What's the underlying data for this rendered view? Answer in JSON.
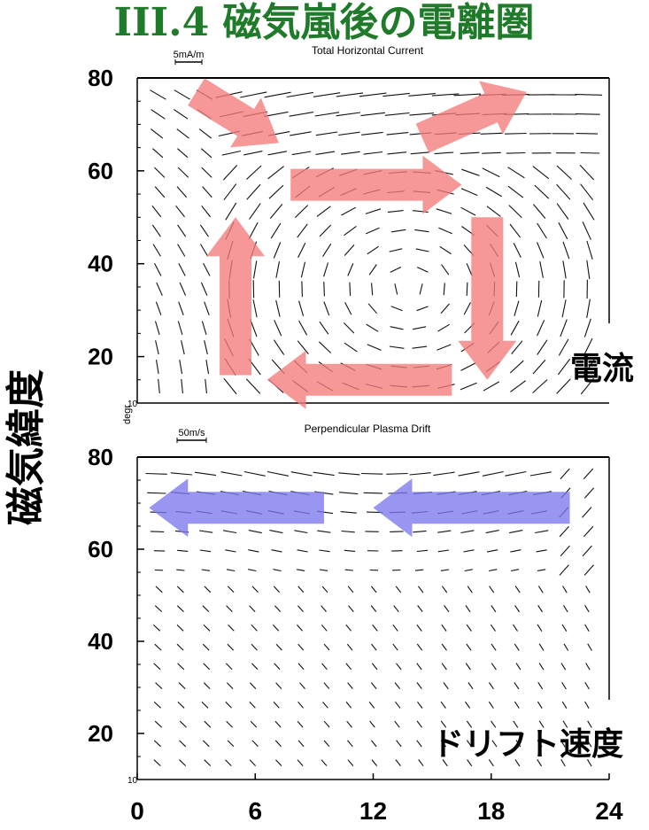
{
  "slide_title": "III.4 磁気嵐後の電離圏",
  "y_axis_label": "磁気緯度",
  "degr_label": "degr",
  "x_ticks": [
    "0",
    "6",
    "12",
    "18",
    "24"
  ],
  "colors": {
    "title": "#1f7a2a",
    "current_arrow": "#f47b7b",
    "drift_arrow": "#7c78ee"
  },
  "chart_data": [
    {
      "type": "vector-field",
      "title": "Total Horizontal Current",
      "scale_label": "5mA/m",
      "panel_label": "電流",
      "ylim": [
        10,
        80
      ],
      "xlim": [
        0,
        24
      ],
      "y_ticks": [
        "80",
        "60",
        "40",
        "20"
      ],
      "bottom_tick": "10",
      "annotation_arrows": [
        {
          "from": [
            3.0,
            77
          ],
          "to": [
            7.2,
            66
          ],
          "color": "current_arrow"
        },
        {
          "from": [
            14.5,
            67
          ],
          "to": [
            19.8,
            77
          ],
          "color": "current_arrow"
        },
        {
          "from": [
            7.8,
            57
          ],
          "to": [
            16.5,
            57
          ],
          "color": "current_arrow"
        },
        {
          "from": [
            17.8,
            50
          ],
          "to": [
            17.8,
            15
          ],
          "color": "current_arrow"
        },
        {
          "from": [
            16.0,
            15
          ],
          "to": [
            6.6,
            15
          ],
          "color": "current_arrow"
        },
        {
          "from": [
            5.0,
            16
          ],
          "to": [
            5.0,
            50
          ],
          "color": "current_arrow"
        }
      ]
    },
    {
      "type": "vector-field",
      "title": "Perpendicular Plasma Drift",
      "scale_label": "50m/s",
      "panel_label": "ドリフト速度",
      "ylim": [
        10,
        80
      ],
      "xlim": [
        0,
        24
      ],
      "y_ticks": [
        "80",
        "60",
        "40",
        "20"
      ],
      "bottom_tick": "10",
      "annotation_arrows": [
        {
          "from": [
            9.5,
            69
          ],
          "to": [
            0.6,
            69
          ],
          "color": "drift_arrow"
        },
        {
          "from": [
            22.0,
            69
          ],
          "to": [
            12.0,
            69
          ],
          "color": "drift_arrow"
        }
      ]
    }
  ]
}
